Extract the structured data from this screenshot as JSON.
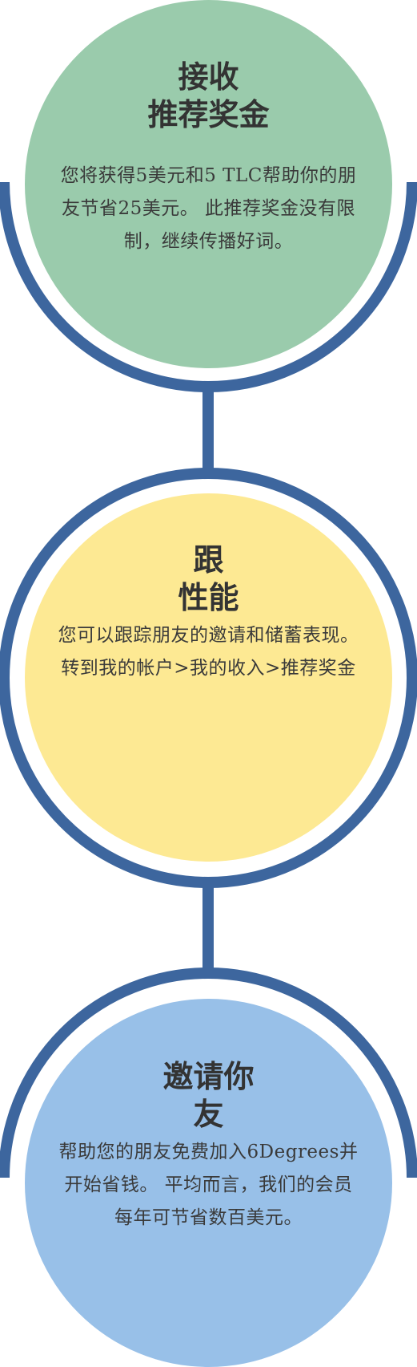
{
  "colors": {
    "ring": "#3d669e",
    "green": "#9acbac",
    "yellow": "#fde993",
    "blue": "#98c0e8"
  },
  "steps": [
    {
      "title": "接收\n推荐奖金",
      "body": "您将获得5美元和5 TLC帮助你的朋友节省25美元。 此推荐奖金没有限制，继续传播好词。"
    },
    {
      "title": "跟\n性能",
      "body": "您可以跟踪朋友的邀请和储蓄表现。 转到我的帐户>我的收入>推荐奖金"
    },
    {
      "title": "邀请你\n友",
      "body": "帮助您的朋友免费加入6Degrees并开始省钱。 平均而言，我们的会员每年可节省数百美元。"
    }
  ]
}
